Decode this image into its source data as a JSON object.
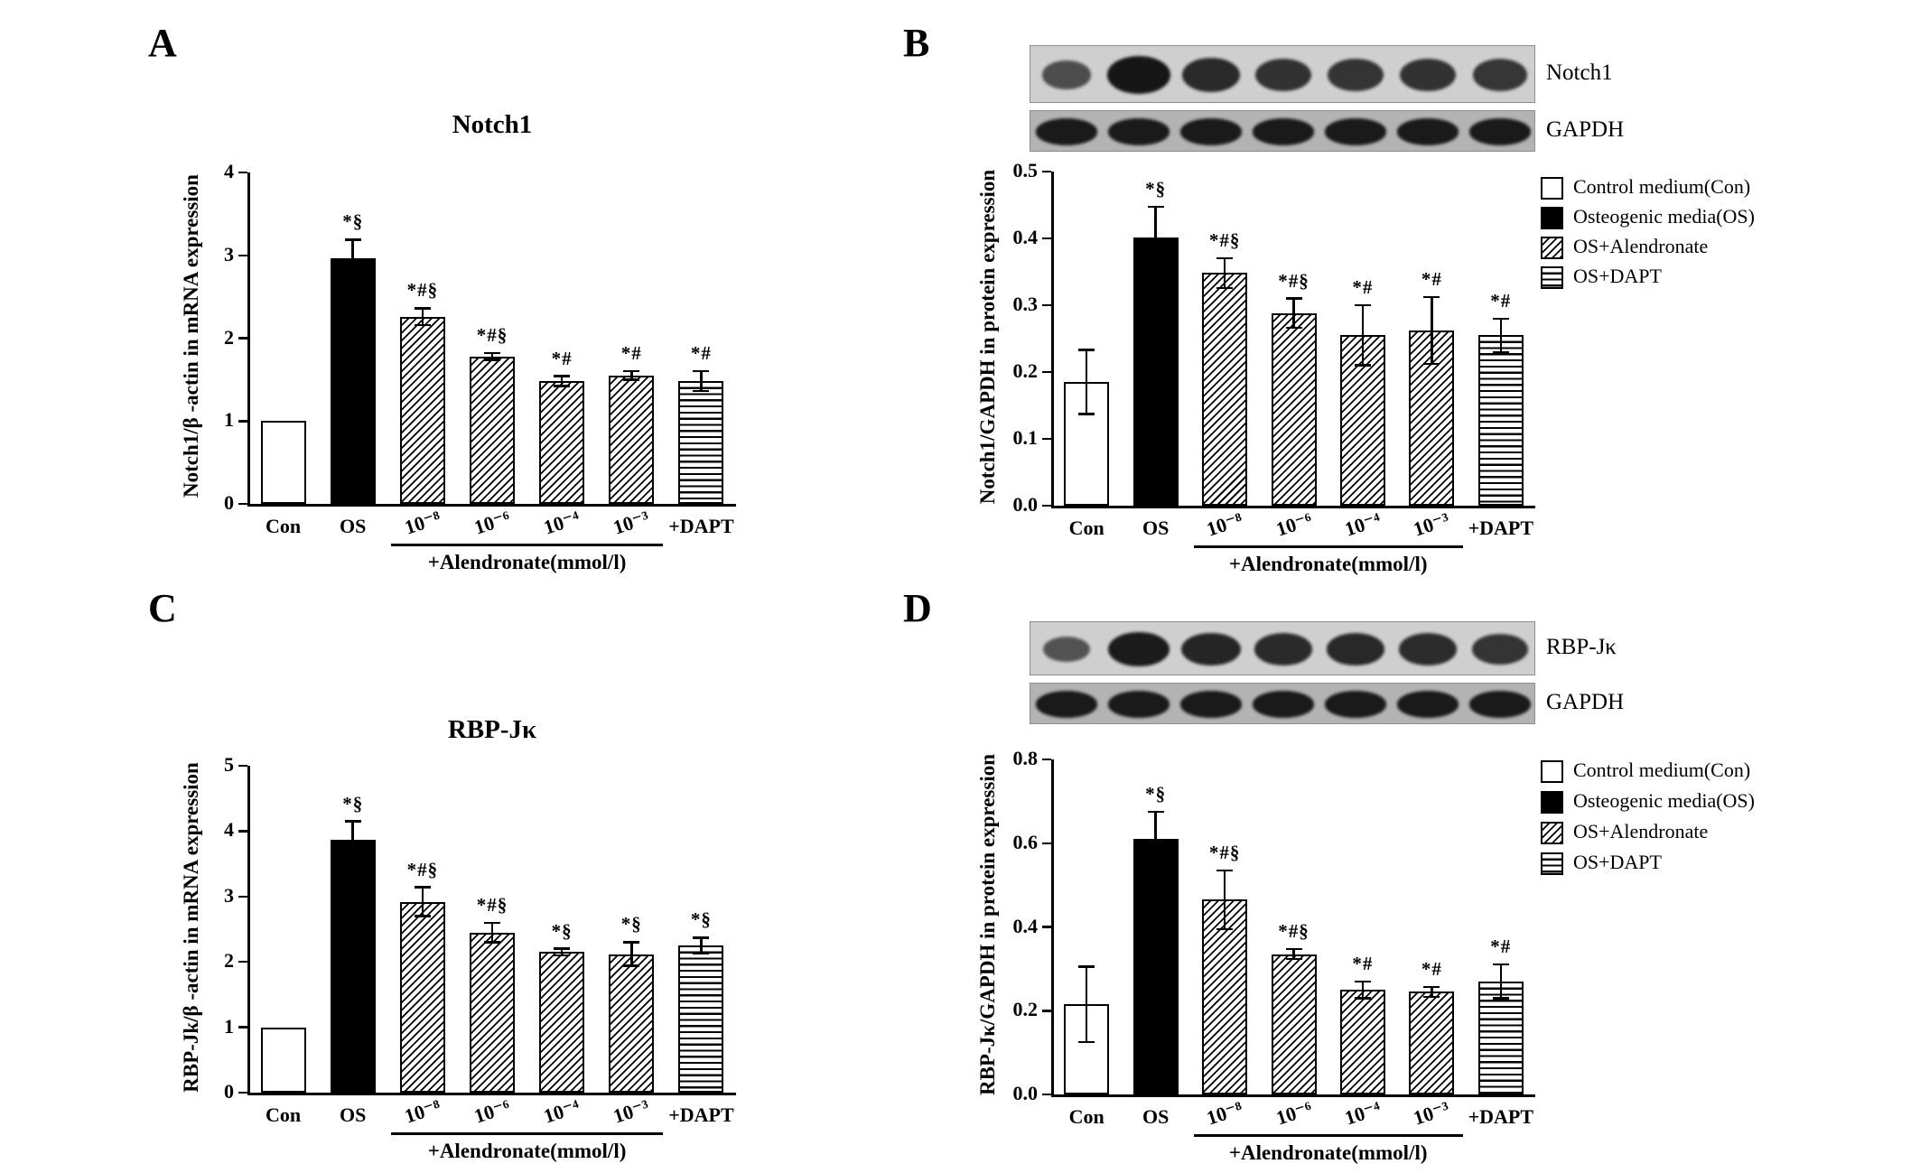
{
  "panel_letters": [
    "A",
    "B",
    "C",
    "D"
  ],
  "colors": {
    "foreground": "#000000",
    "background": "#ffffff",
    "blot_strip_light": "#cfcfcf",
    "blot_strip_dark": "#b3b3b3",
    "blot_band": "#161616"
  },
  "legend": {
    "items": [
      {
        "label": "Control medium(Con)",
        "style": "open"
      },
      {
        "label": "Osteogenic media(OS)",
        "style": "solid"
      },
      {
        "label": "OS+Alendronate",
        "style": "diagonal-hatch"
      },
      {
        "label": "OS+DAPT",
        "style": "horizontal-lines"
      }
    ]
  },
  "blots": {
    "B": [
      {
        "label": "Notch1",
        "bg": "#cfcfcf",
        "bands": [
          0.45,
          1.0,
          0.8,
          0.72,
          0.7,
          0.72,
          0.68
        ]
      },
      {
        "label": "GAPDH",
        "bg": "#b3b3b3",
        "bands": [
          0.95,
          0.95,
          0.95,
          0.95,
          0.95,
          0.95,
          0.95
        ]
      }
    ],
    "D": [
      {
        "label": "RBP-Jκ",
        "bg": "#cfcfcf",
        "bands": [
          0.4,
          0.95,
          0.85,
          0.8,
          0.82,
          0.78,
          0.7
        ]
      },
      {
        "label": "GAPDH",
        "bg": "#b3b3b3",
        "bands": [
          0.95,
          0.95,
          0.95,
          0.95,
          0.95,
          0.95,
          0.95
        ]
      }
    ]
  },
  "chart_data": [
    {
      "panel": "A",
      "type": "bar",
      "title": "Notch1",
      "xlabel": "",
      "ylabel": "Notch1/β -actin in mRNA expression",
      "ylim": [
        0,
        4
      ],
      "yticks": [
        "0",
        "1",
        "2",
        "3",
        "4"
      ],
      "categories": [
        "Con",
        "OS",
        "10⁻⁸",
        "10⁻⁶",
        "10⁻⁴",
        "10⁻³",
        "+DAPT"
      ],
      "values": [
        1.0,
        2.97,
        2.26,
        1.78,
        1.48,
        1.55,
        1.48
      ],
      "errors": [
        0,
        0.22,
        0.1,
        0.04,
        0.06,
        0.05,
        0.12
      ],
      "annotations": [
        "",
        "*§",
        "*#§",
        "*#§",
        "*#",
        "*#",
        "*#"
      ],
      "bar_styles": [
        "open",
        "solid",
        "diagonal-hatch",
        "diagonal-hatch",
        "diagonal-hatch",
        "diagonal-hatch",
        "horizontal-lines"
      ],
      "rotated_ticks": [
        2,
        3,
        4,
        5
      ],
      "group_label": "+Alendronate(mmol/l)",
      "group_span": [
        2,
        5
      ],
      "grid": false,
      "legend_position": "none"
    },
    {
      "panel": "B",
      "type": "bar",
      "title": "",
      "xlabel": "",
      "ylabel": "Notch1/GAPDH in protein expression",
      "ylim": [
        0,
        0.5
      ],
      "yticks": [
        "0.0",
        "0.1",
        "0.2",
        "0.3",
        "0.4",
        "0.5"
      ],
      "categories": [
        "Con",
        "OS",
        "10⁻⁸",
        "10⁻⁶",
        "10⁻⁴",
        "10⁻³",
        "+DAPT"
      ],
      "values": [
        0.185,
        0.402,
        0.348,
        0.288,
        0.255,
        0.262,
        0.255
      ],
      "errors": [
        0.048,
        0.045,
        0.022,
        0.022,
        0.045,
        0.05,
        0.025
      ],
      "annotations": [
        "",
        "*§",
        "*#§",
        "*#§",
        "*#",
        "*#",
        "*#"
      ],
      "bar_styles": [
        "open",
        "solid",
        "diagonal-hatch",
        "diagonal-hatch",
        "diagonal-hatch",
        "diagonal-hatch",
        "horizontal-lines"
      ],
      "rotated_ticks": [
        2,
        3,
        4,
        5
      ],
      "group_label": "+Alendronate(mmol/l)",
      "group_span": [
        2,
        5
      ],
      "grid": false,
      "legend_position": "right"
    },
    {
      "panel": "C",
      "type": "bar",
      "title": "RBP-Jκ",
      "xlabel": "",
      "ylabel": "RBP-Jk/β -actin in mRNA expression",
      "ylim": [
        0,
        5
      ],
      "yticks": [
        "0",
        "1",
        "2",
        "3",
        "4",
        "5"
      ],
      "categories": [
        "Con",
        "OS",
        "10⁻⁸",
        "10⁻⁶",
        "10⁻⁴",
        "10⁻³",
        "+DAPT"
      ],
      "values": [
        1.0,
        3.87,
        2.92,
        2.45,
        2.15,
        2.12,
        2.25
      ],
      "errors": [
        0,
        0.28,
        0.22,
        0.15,
        0.05,
        0.18,
        0.12
      ],
      "annotations": [
        "",
        "*§",
        "*#§",
        "*#§",
        "*§",
        "*§",
        "*§"
      ],
      "bar_styles": [
        "open",
        "solid",
        "diagonal-hatch",
        "diagonal-hatch",
        "diagonal-hatch",
        "diagonal-hatch",
        "horizontal-lines"
      ],
      "rotated_ticks": [
        2,
        3,
        4,
        5
      ],
      "group_label": "+Alendronate(mmol/l)",
      "group_span": [
        2,
        5
      ],
      "grid": false,
      "legend_position": "none"
    },
    {
      "panel": "D",
      "type": "bar",
      "title": "",
      "xlabel": "",
      "ylabel": "RBP-Jκ/GAPDH in protein expression",
      "ylim": [
        0,
        0.8
      ],
      "yticks": [
        "0.0",
        "0.2",
        "0.4",
        "0.6",
        "0.8"
      ],
      "categories": [
        "Con",
        "OS",
        "10⁻⁸",
        "10⁻⁶",
        "10⁻⁴",
        "10⁻³",
        "+DAPT"
      ],
      "values": [
        0.215,
        0.61,
        0.465,
        0.335,
        0.25,
        0.245,
        0.27
      ],
      "errors": [
        0.09,
        0.065,
        0.07,
        0.012,
        0.02,
        0.012,
        0.04
      ],
      "annotations": [
        "",
        "*§",
        "*#§",
        "*#§",
        "*#",
        "*#",
        "*#"
      ],
      "bar_styles": [
        "open",
        "solid",
        "diagonal-hatch",
        "diagonal-hatch",
        "diagonal-hatch",
        "diagonal-hatch",
        "horizontal-lines"
      ],
      "rotated_ticks": [
        2,
        3,
        4,
        5
      ],
      "group_label": "+Alendronate(mmol/l)",
      "group_span": [
        2,
        5
      ],
      "grid": false,
      "legend_position": "right"
    }
  ]
}
